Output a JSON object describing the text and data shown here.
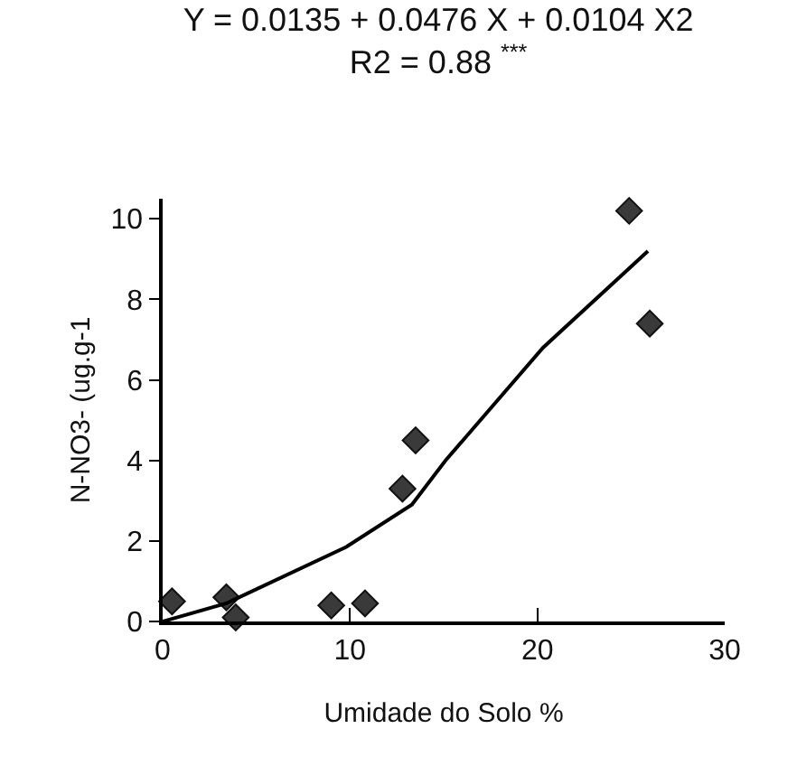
{
  "chart_data": {
    "type": "scatter",
    "title": "Y = 0.0135 + 0.0476 X + 0.0104 X2",
    "subtitle": "R2 = 0.88 $^{***}$",
    "xlabel": "Umidade do Solo %",
    "ylabel": "N-NO3- (ug.g-1",
    "xlim": [
      0,
      30
    ],
    "xticks": [
      0,
      10,
      20,
      30
    ],
    "ylim": [
      0,
      10.5
    ],
    "yticks": [
      0,
      2,
      4,
      6,
      8,
      10
    ],
    "series": [
      {
        "marker": "diamond",
        "color": "#3a3a3a",
        "x": [
          0.5,
          3.2,
          3.4,
          3.9,
          9.0,
          10.8,
          12.8,
          13.5,
          24.9,
          26.0
        ],
        "values": [
          0.5,
          null,
          0.6,
          0.1,
          0.4,
          0.45,
          3.3,
          4.5,
          10.2,
          7.4
        ]
      },
      {
        "type": "line",
        "marker": "none",
        "line_style": "solid",
        "color": "#000000",
        "x": [
          0,
          3.4,
          9.8,
          13.3,
          15.1,
          20.3,
          25.9
        ],
        "values": [
          0,
          0.45,
          1.85,
          2.9,
          4.0,
          6.8,
          9.2
        ]
      }
    ]
  }
}
